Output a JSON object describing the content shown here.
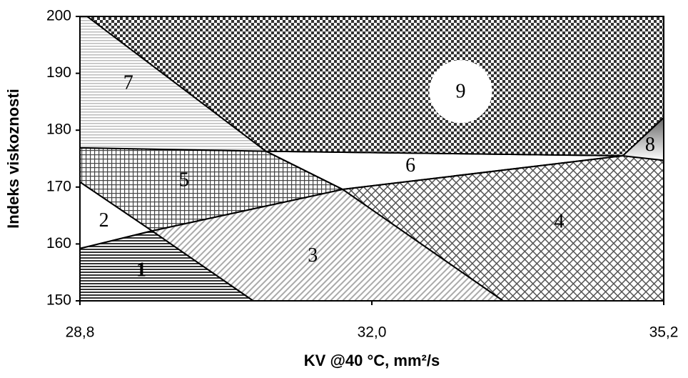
{
  "chart_data": {
    "type": "region",
    "xlabel": "KV @40 °C, mm²/s",
    "ylabel": "Indeks viskoznosti",
    "xlim": [
      28.8,
      35.2
    ],
    "ylim": [
      150,
      200
    ],
    "xticks": [
      {
        "value": 28.8,
        "label": "28,8"
      },
      {
        "value": 32.0,
        "label": "32,0"
      },
      {
        "value": 35.2,
        "label": "35,2"
      }
    ],
    "yticks": [
      150,
      160,
      170,
      180,
      190,
      200
    ],
    "regions": [
      {
        "label": "1",
        "pattern": "hlines-dark",
        "x": [
          28.8,
          30.7,
          29.59,
          28.8
        ],
        "y": [
          150,
          150,
          162.3,
          159.2
        ]
      },
      {
        "label": "2",
        "pattern": "gray",
        "x": [
          28.8,
          29.59,
          28.8
        ],
        "y": [
          159.2,
          162.3,
          170.9
        ]
      },
      {
        "label": "3",
        "pattern": "diagonal",
        "x": [
          30.7,
          33.44,
          31.68,
          29.59
        ],
        "y": [
          150,
          150,
          169.6,
          162.3
        ]
      },
      {
        "label": "4",
        "pattern": "crosshatch",
        "x": [
          33.44,
          35.2,
          35.2,
          34.75,
          31.68
        ],
        "y": [
          150,
          150,
          174.7,
          175.5,
          169.6
        ]
      },
      {
        "label": "5",
        "pattern": "grid",
        "x": [
          28.8,
          29.59,
          31.68,
          30.84,
          28.8
        ],
        "y": [
          170.9,
          162.3,
          169.6,
          176.3,
          176.9
        ]
      },
      {
        "label": "6",
        "pattern": "gray",
        "x": [
          30.84,
          31.68,
          34.75
        ],
        "y": [
          176.3,
          169.6,
          175.5
        ]
      },
      {
        "label": "7",
        "pattern": "hlines-light",
        "x": [
          28.8,
          28.88,
          30.84,
          28.8
        ],
        "y": [
          200,
          200,
          176.3,
          176.9
        ]
      },
      {
        "label": "8",
        "pattern": "gradient",
        "x": [
          34.75,
          35.2,
          35.2
        ],
        "y": [
          175.5,
          182.2,
          174.7
        ]
      },
      {
        "label": "9",
        "pattern": "checker",
        "x": [
          28.88,
          35.2,
          35.2,
          34.75,
          30.84
        ],
        "y": [
          200,
          200,
          182.2,
          175.5,
          176.3
        ]
      }
    ]
  }
}
